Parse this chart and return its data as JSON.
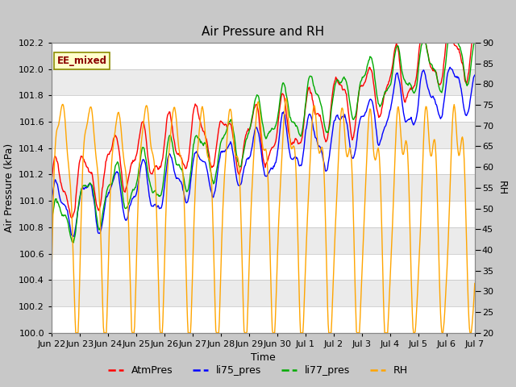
{
  "title": "Air Pressure and RH",
  "xlabel": "Time",
  "ylabel_left": "Air Pressure (kPa)",
  "ylabel_right": "RH",
  "ylim_left": [
    100.0,
    102.2
  ],
  "ylim_right": [
    20,
    90
  ],
  "yticks_left": [
    100.0,
    100.2,
    100.4,
    100.6,
    100.8,
    101.0,
    101.2,
    101.4,
    101.6,
    101.8,
    102.0,
    102.2
  ],
  "yticks_right": [
    20,
    25,
    30,
    35,
    40,
    45,
    50,
    55,
    60,
    65,
    70,
    75,
    80,
    85,
    90
  ],
  "annotation": "EE_mixed",
  "annotation_color": "#8B0000",
  "annotation_bg": "#FFFFCC",
  "annotation_edge": "#8B8B00",
  "fig_bg": "#C8C8C8",
  "plot_bg": "#FFFFFF",
  "grid_color": "#D0D0D0",
  "band_colors": [
    "#FFFFFF",
    "#EBEBEB"
  ],
  "colors": {
    "AtmPres": "#FF0000",
    "li75_pres": "#0000FF",
    "li77_pres": "#00AA00",
    "RH": "#FFA500"
  },
  "legend_entries": [
    "AtmPres",
    "li75_pres",
    "li77_pres",
    "RH"
  ],
  "xtick_labels": [
    "Jun 22",
    "Jun 23",
    "Jun 24",
    "Jun 25",
    "Jun 26",
    "Jun 27",
    "Jun 28",
    "Jun 29",
    "Jun 30",
    "Jul 1",
    "Jul 2",
    "Jul 3",
    "Jul 4",
    "Jul 5",
    "Jul 6",
    "Jul 7"
  ],
  "n_points": 720,
  "seed": 17
}
